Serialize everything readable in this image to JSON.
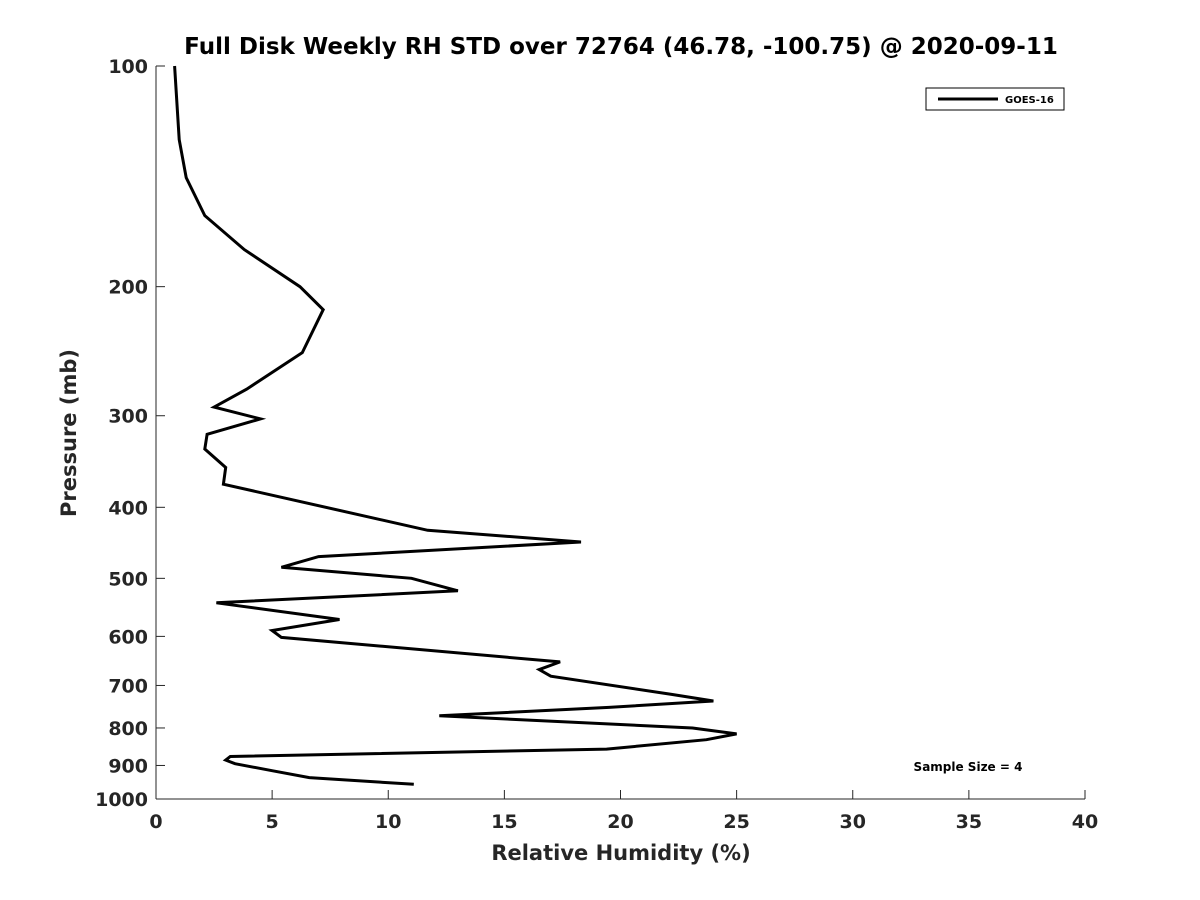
{
  "chart_data": {
    "type": "line",
    "title": "Full Disk Weekly RH STD over 72764 (46.78, -100.75) @ 2020-09-11",
    "xlabel": "Relative Humidity (%)",
    "ylabel": "Pressure (mb)",
    "xlim": [
      0,
      40
    ],
    "ylim": [
      100,
      1000
    ],
    "y_scale": "log",
    "y_reversed": true,
    "grid": false,
    "legend_position": "top-right",
    "x_ticks": [
      0,
      5,
      10,
      15,
      20,
      25,
      30,
      35,
      40
    ],
    "x_tick_labels": [
      "0",
      "5",
      "10",
      "15",
      "20",
      "25",
      "30",
      "35",
      "40"
    ],
    "y_ticks": [
      100,
      200,
      300,
      400,
      500,
      600,
      700,
      800,
      900,
      1000
    ],
    "y_tick_labels": [
      "100",
      "200",
      "300",
      "400",
      "500",
      "600",
      "700",
      "800",
      "900",
      "1000"
    ],
    "series": [
      {
        "name": "GOES-16",
        "color": "#000000",
        "x": [
          0.8,
          1.0,
          1.3,
          2.1,
          3.8,
          6.2,
          7.2,
          6.3,
          3.9,
          2.5,
          4.5,
          2.2,
          2.1,
          3.0,
          2.9,
          11.7,
          18.3,
          7.0,
          5.4,
          11.0,
          13.0,
          2.6,
          7.9,
          5.0,
          5.4,
          17.4,
          16.5,
          17.0,
          22.2,
          24.0,
          19.5,
          12.2,
          23.1,
          25.0,
          23.7,
          19.4,
          3.2,
          3.0,
          3.4,
          5.0,
          6.6,
          11.1
        ],
        "y": [
          100,
          126,
          142,
          160,
          178,
          200,
          215,
          246,
          276,
          292,
          303,
          318,
          333,
          353,
          372,
          430,
          446,
          467,
          483,
          500,
          520,
          540,
          569,
          589,
          602,
          650,
          666,
          680,
          720,
          735,
          750,
          770,
          800,
          815,
          830,
          855,
          875,
          885,
          895,
          915,
          935,
          955
        ]
      }
    ],
    "annotations": [
      "Sample Size = 4"
    ]
  }
}
